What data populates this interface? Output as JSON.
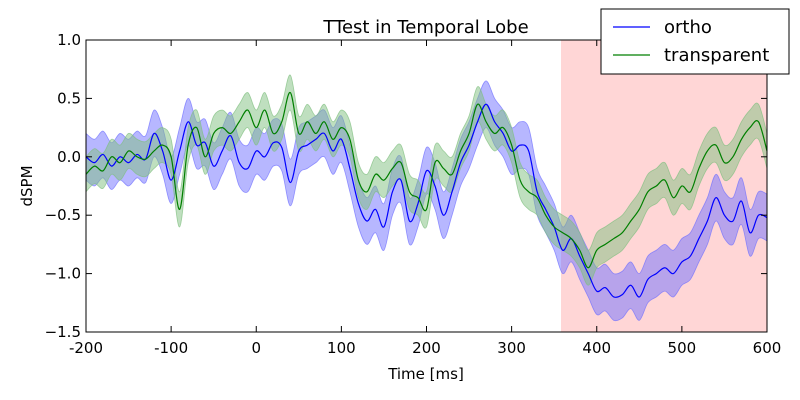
{
  "chart_data": {
    "type": "line",
    "title": "TTest in Temporal Lobe",
    "xlabel": "Time [ms]",
    "ylabel": "dSPM",
    "xlim": [
      -200,
      600
    ],
    "ylim": [
      -1.5,
      1.0
    ],
    "xticks": [
      -200,
      -100,
      0,
      100,
      200,
      300,
      400,
      500,
      600
    ],
    "yticks": [
      -1.5,
      -1.0,
      -0.5,
      0.0,
      0.5,
      1.0
    ],
    "xtick_labels": [
      "-200",
      "-100",
      "0",
      "100",
      "200",
      "300",
      "400",
      "500",
      "600"
    ],
    "ytick_labels": [
      "−1.5",
      "−1.0",
      "−0.5",
      "0.0",
      "0.5",
      "1.0"
    ],
    "grid": false,
    "legend_position": "top-right",
    "highlight_region": {
      "x_start": 358,
      "x_end": 600,
      "color": "#ffd6d6"
    },
    "x": [
      -200,
      -190,
      -180,
      -170,
      -160,
      -150,
      -140,
      -130,
      -120,
      -110,
      -100,
      -90,
      -80,
      -70,
      -60,
      -50,
      -40,
      -30,
      -20,
      -10,
      0,
      10,
      20,
      30,
      40,
      50,
      60,
      70,
      80,
      90,
      100,
      110,
      120,
      130,
      140,
      150,
      160,
      170,
      180,
      190,
      200,
      210,
      220,
      230,
      240,
      250,
      260,
      270,
      280,
      290,
      300,
      310,
      320,
      330,
      340,
      350,
      360,
      370,
      380,
      390,
      400,
      410,
      420,
      430,
      440,
      450,
      460,
      470,
      480,
      490,
      500,
      510,
      520,
      530,
      540,
      550,
      560,
      570,
      580,
      590,
      600
    ],
    "series": [
      {
        "name": "ortho",
        "color": "#0000ff",
        "fill_color": "#6f6fff",
        "values": [
          0.0,
          -0.05,
          0.02,
          -0.08,
          0.0,
          -0.05,
          0.02,
          -0.02,
          0.2,
          0.05,
          -0.2,
          0.05,
          0.3,
          0.1,
          0.12,
          -0.08,
          0.05,
          0.18,
          -0.05,
          -0.1,
          0.05,
          0.0,
          0.12,
          0.08,
          -0.22,
          0.05,
          0.1,
          0.15,
          0.2,
          0.05,
          0.15,
          -0.1,
          -0.4,
          -0.55,
          -0.45,
          -0.6,
          -0.3,
          -0.2,
          -0.55,
          -0.4,
          -0.12,
          -0.25,
          -0.5,
          -0.3,
          -0.05,
          0.1,
          0.3,
          0.45,
          0.3,
          0.2,
          0.05,
          0.1,
          0.05,
          -0.3,
          -0.45,
          -0.6,
          -0.8,
          -0.7,
          -0.85,
          -1.0,
          -1.15,
          -1.12,
          -1.2,
          -1.18,
          -1.1,
          -1.2,
          -1.05,
          -1.0,
          -0.95,
          -1.0,
          -0.9,
          -0.85,
          -0.7,
          -0.55,
          -0.35,
          -0.5,
          -0.55,
          -0.38,
          -0.65,
          -0.5,
          -0.52
        ],
        "lower": [
          -0.2,
          -0.25,
          -0.18,
          -0.28,
          -0.2,
          -0.25,
          -0.18,
          -0.22,
          0.0,
          -0.15,
          -0.4,
          -0.15,
          0.1,
          -0.1,
          -0.08,
          -0.28,
          -0.15,
          -0.02,
          -0.25,
          -0.3,
          -0.15,
          -0.2,
          -0.08,
          -0.12,
          -0.42,
          -0.15,
          -0.1,
          -0.05,
          0.0,
          -0.15,
          -0.05,
          -0.3,
          -0.6,
          -0.75,
          -0.65,
          -0.8,
          -0.5,
          -0.4,
          -0.75,
          -0.6,
          -0.32,
          -0.45,
          -0.7,
          -0.5,
          -0.25,
          -0.1,
          0.1,
          0.25,
          0.1,
          0.0,
          -0.15,
          -0.1,
          -0.15,
          -0.5,
          -0.65,
          -0.8,
          -1.0,
          -0.9,
          -1.05,
          -1.2,
          -1.35,
          -1.32,
          -1.4,
          -1.38,
          -1.3,
          -1.4,
          -1.25,
          -1.2,
          -1.15,
          -1.2,
          -1.1,
          -1.05,
          -0.9,
          -0.75,
          -0.55,
          -0.7,
          -0.75,
          -0.58,
          -0.85,
          -0.7,
          -0.72
        ],
        "upper": [
          0.2,
          0.15,
          0.22,
          0.12,
          0.2,
          0.15,
          0.22,
          0.18,
          0.4,
          0.25,
          0.0,
          0.25,
          0.5,
          0.3,
          0.32,
          0.12,
          0.25,
          0.38,
          0.15,
          0.1,
          0.25,
          0.2,
          0.32,
          0.28,
          -0.02,
          0.25,
          0.3,
          0.35,
          0.4,
          0.25,
          0.35,
          0.1,
          -0.2,
          -0.35,
          -0.25,
          -0.4,
          -0.1,
          0.0,
          -0.35,
          -0.2,
          0.08,
          -0.05,
          -0.3,
          -0.1,
          0.15,
          0.3,
          0.5,
          0.65,
          0.5,
          0.4,
          0.25,
          0.3,
          0.25,
          -0.1,
          -0.25,
          -0.4,
          -0.6,
          -0.5,
          -0.65,
          -0.8,
          -0.95,
          -0.92,
          -1.0,
          -0.98,
          -0.9,
          -1.0,
          -0.85,
          -0.8,
          -0.75,
          -0.8,
          -0.7,
          -0.65,
          -0.5,
          -0.35,
          -0.15,
          -0.3,
          -0.35,
          -0.18,
          -0.45,
          -0.3,
          -0.32
        ]
      },
      {
        "name": "transparent",
        "color": "#007f00",
        "fill_color": "#7fbf7f",
        "values": [
          -0.15,
          -0.08,
          -0.12,
          0.0,
          -0.05,
          0.05,
          0.0,
          -0.02,
          0.05,
          0.1,
          0.0,
          -0.45,
          0.1,
          0.25,
          0.0,
          0.2,
          0.25,
          0.2,
          0.3,
          0.4,
          0.25,
          0.4,
          0.2,
          0.3,
          0.55,
          0.2,
          0.3,
          0.2,
          0.3,
          0.15,
          0.25,
          0.15,
          -0.2,
          -0.3,
          -0.15,
          -0.2,
          -0.1,
          -0.05,
          -0.3,
          -0.35,
          -0.45,
          -0.05,
          -0.1,
          -0.15,
          0.05,
          0.2,
          0.45,
          0.3,
          0.2,
          0.25,
          0.1,
          -0.2,
          -0.3,
          -0.35,
          -0.5,
          -0.6,
          -0.65,
          -0.7,
          -0.8,
          -0.95,
          -0.8,
          -0.75,
          -0.7,
          -0.65,
          -0.55,
          -0.45,
          -0.3,
          -0.25,
          -0.2,
          -0.35,
          -0.25,
          -0.3,
          -0.1,
          0.05,
          0.1,
          -0.05,
          0.0,
          0.15,
          0.25,
          0.3,
          0.05
        ],
        "lower": [
          -0.3,
          -0.23,
          -0.27,
          -0.15,
          -0.2,
          -0.1,
          -0.15,
          -0.17,
          -0.1,
          -0.05,
          -0.15,
          -0.6,
          -0.05,
          0.1,
          -0.15,
          0.05,
          0.1,
          0.05,
          0.15,
          0.25,
          0.1,
          0.25,
          0.05,
          0.15,
          0.4,
          0.05,
          0.15,
          0.05,
          0.15,
          0.0,
          0.1,
          0.0,
          -0.35,
          -0.45,
          -0.3,
          -0.35,
          -0.25,
          -0.2,
          -0.45,
          -0.5,
          -0.6,
          -0.2,
          -0.25,
          -0.3,
          -0.1,
          0.05,
          0.3,
          0.15,
          0.05,
          0.1,
          -0.05,
          -0.35,
          -0.45,
          -0.5,
          -0.65,
          -0.75,
          -0.8,
          -0.85,
          -0.95,
          -1.1,
          -0.95,
          -0.9,
          -0.85,
          -0.8,
          -0.7,
          -0.6,
          -0.45,
          -0.4,
          -0.35,
          -0.5,
          -0.4,
          -0.45,
          -0.25,
          -0.1,
          -0.05,
          -0.2,
          -0.15,
          0.0,
          0.1,
          0.15,
          -0.1
        ],
        "upper": [
          0.0,
          0.07,
          0.03,
          0.15,
          0.1,
          0.2,
          0.15,
          0.13,
          0.2,
          0.25,
          0.15,
          -0.3,
          0.25,
          0.4,
          0.15,
          0.35,
          0.4,
          0.35,
          0.45,
          0.55,
          0.4,
          0.55,
          0.35,
          0.45,
          0.7,
          0.35,
          0.45,
          0.35,
          0.45,
          0.3,
          0.4,
          0.3,
          -0.05,
          -0.15,
          0.0,
          -0.05,
          0.05,
          0.1,
          -0.15,
          -0.2,
          -0.3,
          0.1,
          0.05,
          0.0,
          0.2,
          0.35,
          0.6,
          0.45,
          0.35,
          0.4,
          0.25,
          -0.05,
          -0.15,
          -0.2,
          -0.35,
          -0.45,
          -0.5,
          -0.55,
          -0.65,
          -0.8,
          -0.65,
          -0.6,
          -0.55,
          -0.5,
          -0.4,
          -0.3,
          -0.15,
          -0.1,
          -0.05,
          -0.2,
          -0.1,
          -0.15,
          0.05,
          0.2,
          0.25,
          0.1,
          0.15,
          0.3,
          0.4,
          0.45,
          0.2
        ]
      }
    ]
  }
}
